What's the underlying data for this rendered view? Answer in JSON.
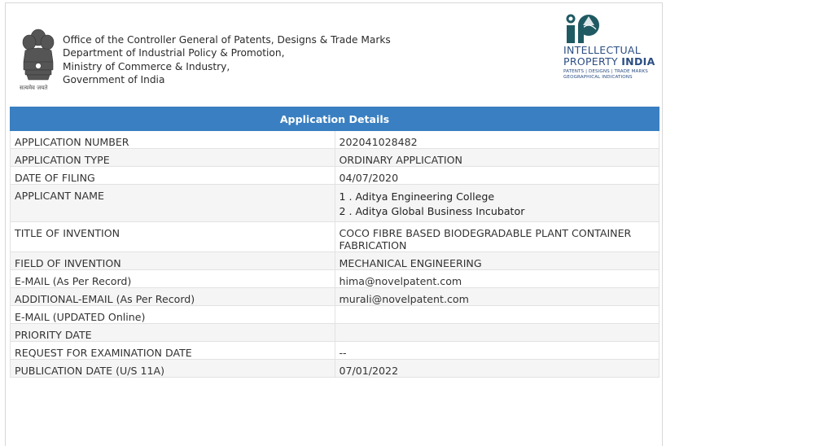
{
  "header": {
    "office_lines": [
      "Office of the Controller General of Patents, Designs & Trade Marks",
      "Department of Industrial Policy & Promotion,",
      "Ministry of Commerce & Industry,",
      "Government of India"
    ],
    "emblem_motto": "सत्यमेव जयते",
    "ipi_logo": {
      "line1": "INTELLECTUAL",
      "line2_a": "PROPERTY",
      "line2_b": "INDIA",
      "sub1": "PATENTS | DESIGNS | TRADE MARKS",
      "sub2": "GEOGRAPHICAL INDICATIONS",
      "color": "#2b4e83"
    }
  },
  "table": {
    "title": "Application Details",
    "header_color": "#3a7fc1",
    "rows": [
      {
        "label": "APPLICATION NUMBER",
        "value": "202041028482"
      },
      {
        "label": "APPLICATION TYPE",
        "value": "ORDINARY APPLICATION"
      },
      {
        "label": "DATE OF FILING",
        "value": "04/07/2020"
      },
      {
        "label": "APPLICANT NAME",
        "values": [
          "1 . Aditya Engineering College",
          "2 . Aditya Global Business Incubator"
        ]
      },
      {
        "label": "TITLE OF INVENTION",
        "value": "COCO FIBRE BASED BIODEGRADABLE PLANT CONTAINER FABRICATION"
      },
      {
        "label": "FIELD OF INVENTION",
        "value": "MECHANICAL ENGINEERING"
      },
      {
        "label": "E-MAIL (As Per Record)",
        "value": "hima@novelpatent.com"
      },
      {
        "label": "ADDITIONAL-EMAIL (As Per Record)",
        "value": "murali@novelpatent.com"
      },
      {
        "label": "E-MAIL (UPDATED Online)",
        "value": ""
      },
      {
        "label": "PRIORITY DATE",
        "value": ""
      },
      {
        "label": "REQUEST FOR EXAMINATION DATE",
        "value": "--"
      },
      {
        "label": "PUBLICATION DATE (U/S 11A)",
        "value": "07/01/2022"
      }
    ]
  }
}
